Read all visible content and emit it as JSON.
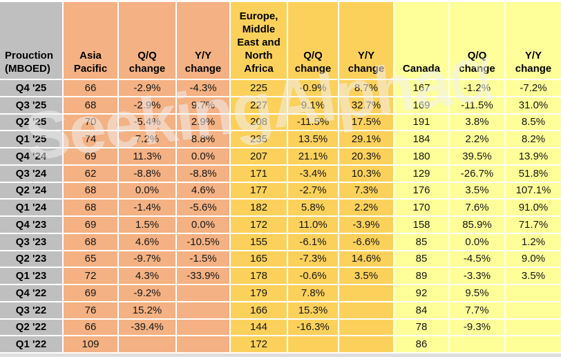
{
  "chart_data": {
    "type": "table",
    "title": "Prouction (MBOED)",
    "column_groups": [
      "Asia Pacific",
      "Europe, Middle East and North Africa",
      "Canada"
    ],
    "columns": [
      {
        "header": "Prouction\n(MBOED)"
      },
      {
        "header": "Asia\nPacific"
      },
      {
        "header": "Q/Q\nchange"
      },
      {
        "header": "Y/Y\nchange"
      },
      {
        "header": "Europe,\nMiddle\nEast and\nNorth\nAfrica"
      },
      {
        "header": "Q/Q\nchange"
      },
      {
        "header": "Y/Y\nchange"
      },
      {
        "header": "Canada"
      },
      {
        "header": "Q/Q\nchange"
      },
      {
        "header": "Y/Y\nchange"
      }
    ],
    "rows": [
      {
        "label": "Q4 '25",
        "values": [
          "66",
          "-2.9%",
          "-4.3%",
          "225",
          "-0.9%",
          "8.7%",
          "167",
          "-1.2%",
          "-7.2%"
        ]
      },
      {
        "label": "Q3 '25",
        "values": [
          "68",
          "-2.9%",
          "9.7%",
          "227",
          "9.1%",
          "32.7%",
          "169",
          "-11.5%",
          "31.0%"
        ]
      },
      {
        "label": "Q2 '25",
        "values": [
          "70",
          "-5.4%",
          "2.9%",
          "208",
          "-11.5%",
          "17.5%",
          "191",
          "3.8%",
          "8.5%"
        ]
      },
      {
        "label": "Q1 '25",
        "values": [
          "74",
          "7.2%",
          "8.8%",
          "235",
          "13.5%",
          "29.1%",
          "184",
          "2.2%",
          "8.2%"
        ]
      },
      {
        "label": "Q4 '24",
        "values": [
          "69",
          "11.3%",
          "0.0%",
          "207",
          "21.1%",
          "20.3%",
          "180",
          "39.5%",
          "13.9%"
        ]
      },
      {
        "label": "Q3 '24",
        "values": [
          "62",
          "-8.8%",
          "-8.8%",
          "171",
          "-3.4%",
          "10.3%",
          "129",
          "-26.7%",
          "51.8%"
        ]
      },
      {
        "label": "Q2 '24",
        "values": [
          "68",
          "0.0%",
          "4.6%",
          "177",
          "-2.7%",
          "7.3%",
          "176",
          "3.5%",
          "107.1%"
        ]
      },
      {
        "label": "Q1 '24",
        "values": [
          "68",
          "-1.4%",
          "-5.6%",
          "182",
          "5.8%",
          "2.2%",
          "170",
          "7.6%",
          "91.0%"
        ]
      },
      {
        "label": "Q4 '23",
        "values": [
          "69",
          "1.5%",
          "0.0%",
          "172",
          "11.0%",
          "-3.9%",
          "158",
          "85.9%",
          "71.7%"
        ]
      },
      {
        "label": "Q3 '23",
        "values": [
          "68",
          "4.6%",
          "-10.5%",
          "155",
          "-6.1%",
          "-6.6%",
          "85",
          "0.0%",
          "1.2%"
        ]
      },
      {
        "label": "Q2 '23",
        "values": [
          "65",
          "-9.7%",
          "-1.5%",
          "165",
          "-7.3%",
          "14.6%",
          "85",
          "-4.5%",
          "9.0%"
        ]
      },
      {
        "label": "Q1 '23",
        "values": [
          "72",
          "4.3%",
          "-33.9%",
          "178",
          "-0.6%",
          "3.5%",
          "89",
          "-3.3%",
          "3.5%"
        ]
      },
      {
        "label": "Q4 '22",
        "values": [
          "69",
          "-9.2%",
          "",
          "179",
          "7.8%",
          "",
          "92",
          "9.5%",
          ""
        ]
      },
      {
        "label": "Q3 '22",
        "values": [
          "76",
          "15.2%",
          "",
          "166",
          "15.3%",
          "",
          "84",
          "7.7%",
          ""
        ]
      },
      {
        "label": "Q2 '22",
        "values": [
          "66",
          "-39.4%",
          "",
          "144",
          "-16.3%",
          "",
          "78",
          "-9.3%",
          ""
        ]
      },
      {
        "label": "Q1 '22",
        "values": [
          "109",
          "",
          "",
          "172",
          "",
          "",
          "86",
          "",
          ""
        ]
      }
    ]
  },
  "watermark": {
    "word1": "Seeking",
    "word2": "Alpha",
    "alpha_symbol": "α"
  },
  "colors": {
    "header_grey": "#bfbfbf",
    "asia_salmon": "#f4b183",
    "europe_gold": "#fcd15b",
    "canada_yellow": "#ffff99",
    "gridline": "#ffffff",
    "bottom_strip": "#dedede"
  }
}
